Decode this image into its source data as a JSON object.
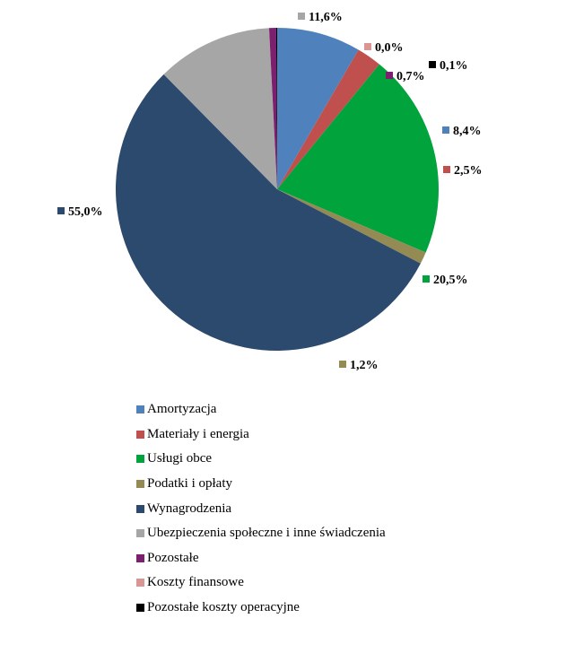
{
  "chart_data": {
    "type": "pie",
    "title": "",
    "slices": [
      {
        "label": "Amortyzacja",
        "value": 8.4,
        "display": "8,4%",
        "color": "#4F81BD"
      },
      {
        "label": "Materiały i energia",
        "value": 2.5,
        "display": "2,5%",
        "color": "#C0504D"
      },
      {
        "label": "Usługi obce",
        "value": 20.5,
        "display": "20,5%",
        "color": "#00A33C"
      },
      {
        "label": "Podatki i opłaty",
        "value": 1.2,
        "display": "1,2%",
        "color": "#948A54"
      },
      {
        "label": "Wynagrodzenia",
        "value": 55.0,
        "display": "55,0%",
        "color": "#2C4A6E"
      },
      {
        "label": "Ubezpieczenia społeczne i inne świadczenia",
        "value": 11.6,
        "display": "11,6%",
        "color": "#A6A6A6"
      },
      {
        "label": "Pozostałe",
        "value": 0.7,
        "display": "0,7%",
        "color": "#7B1F6E"
      },
      {
        "label": "Koszty finansowe",
        "value": 0.0,
        "display": "0,0%",
        "color": "#D99694"
      },
      {
        "label": "Pozostałe koszty operacyjne",
        "value": 0.1,
        "display": "0,1%",
        "color": "#000000"
      }
    ],
    "start_angle_deg": 0,
    "direction": "clockwise",
    "legend_position": "bottom"
  }
}
